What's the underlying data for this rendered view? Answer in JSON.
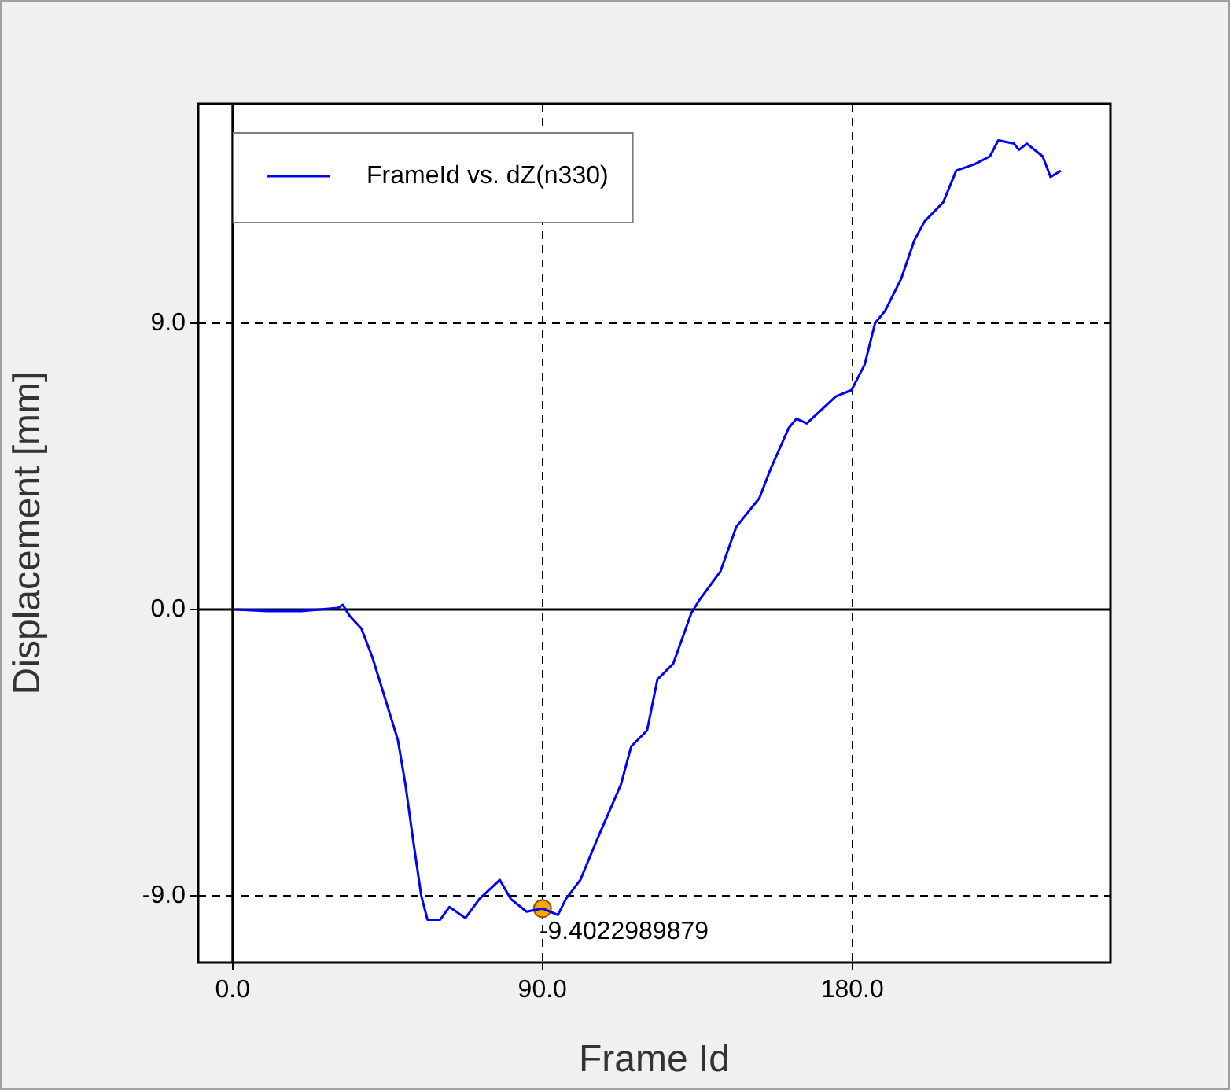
{
  "chart_data": {
    "type": "line",
    "xlabel": "Frame Id",
    "ylabel": "Displacement [mm]",
    "xlim": [
      -10,
      255
    ],
    "ylim": [
      -11.1,
      15.9
    ],
    "xticks": [
      {
        "value": 0,
        "label": "0.0"
      },
      {
        "value": 90,
        "label": "90.0"
      },
      {
        "value": 180,
        "label": "180.0"
      }
    ],
    "yticks": [
      {
        "value": -9,
        "label": "-9.0"
      },
      {
        "value": 0,
        "label": "0.0"
      },
      {
        "value": 9,
        "label": "9.0"
      }
    ],
    "grid": true,
    "legend": "top left",
    "series": [
      {
        "name": "FrameId vs. dZ(n330)",
        "color": "#0000ff",
        "marker": "none",
        "x": [
          1,
          10,
          20,
          30.6,
          32,
          34,
          37.4,
          40.6,
          44.3,
          48,
          50.2,
          52.5,
          54.8,
          56.6,
          60.3,
          63,
          67.6,
          71.7,
          77.6,
          80.8,
          85.4,
          90,
          94.5,
          96.8,
          101,
          106,
          112.8,
          115.8,
          120.4,
          123.4,
          128,
          133.3,
          135.6,
          141.7,
          146.3,
          153,
          156.2,
          161.5,
          163.8,
          166.8,
          175.2,
          179.8,
          183.6,
          186.6,
          189.6,
          194.2,
          198,
          201,
          206.4,
          210.2,
          215.5,
          220,
          222.4,
          227,
          228.4,
          230.7,
          235.3,
          237.6,
          240.6
        ],
        "values": [
          0,
          -0.05,
          -0.05,
          0.05,
          0.15,
          -0.2,
          -0.6,
          -1.5,
          -2.8,
          -4.1,
          -5.5,
          -7.3,
          -9,
          -9.75,
          -9.75,
          -9.35,
          -9.7,
          -9.1,
          -8.5,
          -9.1,
          -9.5,
          -9.4,
          -9.6,
          -9.1,
          -8.5,
          -7.2,
          -5.5,
          -4.3,
          -3.8,
          -2.2,
          -1.7,
          -0.1,
          0.3,
          1.2,
          2.6,
          3.5,
          4.4,
          5.7,
          6,
          5.85,
          6.7,
          6.9,
          7.7,
          9,
          9.4,
          10.4,
          11.6,
          12.2,
          12.8,
          13.8,
          14,
          14.25,
          14.75,
          14.65,
          14.45,
          14.65,
          14.25,
          13.6,
          13.8
        ]
      },
      {
        "type": "scatter",
        "color": "#ffa500",
        "marker": "circle",
        "x": [
          90
        ],
        "values": [
          -9.4022989879
        ],
        "value_labels": [
          "-9.4022989879"
        ]
      }
    ]
  }
}
